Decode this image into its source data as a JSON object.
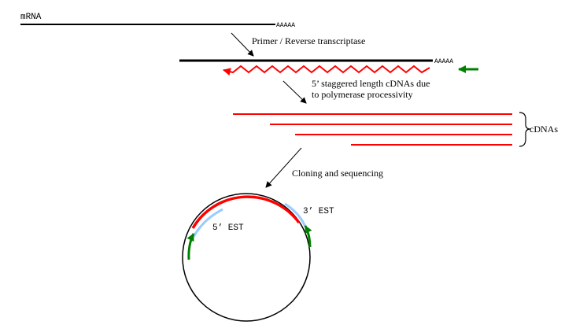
{
  "labels": {
    "mrna": "mRNA",
    "poly_a_tail_1": "AAAAA",
    "poly_a_tail_2": "AAAAA",
    "step_primer": "Primer / Reverse transcriptase",
    "step_staggered_line1": "5’ staggered length cDNAs due",
    "step_staggered_line2": "to polymerase processivity",
    "cdnas": "cDNAs",
    "step_cloning": "Cloning and sequencing",
    "est_5": "5’ EST",
    "est_3": "3’ EST"
  },
  "colors": {
    "strand": "#000000",
    "cdna": "#ff0000",
    "primer_arrow": "#008000",
    "est_read": "#99ccff",
    "text": "#000000"
  }
}
